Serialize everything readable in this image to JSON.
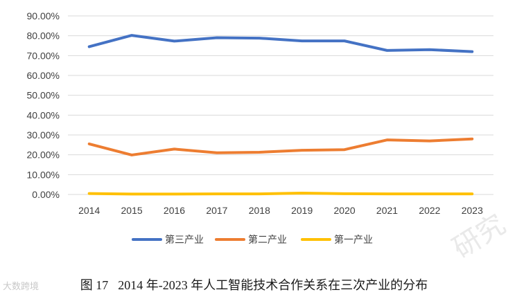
{
  "chart_data": {
    "type": "line",
    "categories": [
      "2014",
      "2015",
      "2016",
      "2017",
      "2018",
      "2019",
      "2020",
      "2021",
      "2022",
      "2023"
    ],
    "series": [
      {
        "name": "第三产业",
        "color": "#4472C4",
        "values": [
          74.5,
          80.2,
          77.3,
          79.0,
          78.8,
          77.4,
          77.4,
          72.6,
          73.0,
          72.0
        ]
      },
      {
        "name": "第二产业",
        "color": "#ED7D31",
        "values": [
          25.5,
          19.9,
          22.9,
          21.0,
          21.3,
          22.3,
          22.6,
          27.5,
          27.0,
          28.0
        ]
      },
      {
        "name": "第一产业",
        "color": "#FFC000",
        "values": [
          0.5,
          0.2,
          0.2,
          0.3,
          0.3,
          0.7,
          0.4,
          0.3,
          0.3,
          0.3
        ]
      }
    ],
    "y_ticks": [
      "0.00%",
      "10.00%",
      "20.00%",
      "30.00%",
      "40.00%",
      "50.00%",
      "60.00%",
      "70.00%",
      "80.00%",
      "90.00%"
    ],
    "ylim": [
      0,
      90
    ],
    "grid": true,
    "legend_position": "bottom"
  },
  "caption": {
    "figure_no": "图 17",
    "text": "2014 年-2023 年人工智能技术合作关系在三次产业的分布"
  },
  "watermarks": {
    "left": "大数跨境",
    "right": "研究"
  }
}
